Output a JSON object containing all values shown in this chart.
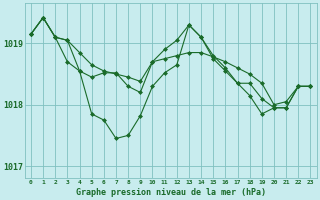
{
  "xlabel": "Graphe pression niveau de la mer (hPa)",
  "background_color": "#c8ecee",
  "plot_bg_color": "#c8ecee",
  "grid_color": "#80c0c0",
  "line_color": "#1a6b2a",
  "tick_label_color": "#1a6b2a",
  "xlabel_color": "#1a6b2a",
  "x_ticks": [
    0,
    1,
    2,
    3,
    4,
    5,
    6,
    7,
    8,
    9,
    10,
    11,
    12,
    13,
    14,
    15,
    16,
    17,
    18,
    19,
    20,
    21,
    22,
    23
  ],
  "ylim": [
    1016.8,
    1019.65
  ],
  "yticks": [
    1017,
    1018,
    1019
  ],
  "series": [
    [
      1019.15,
      1019.42,
      1019.1,
      1019.05,
      1018.85,
      1018.65,
      1018.55,
      1018.5,
      1018.45,
      1018.38,
      1018.7,
      1018.75,
      1018.8,
      1018.85,
      1018.85,
      1018.78,
      1018.7,
      1018.6,
      1018.5,
      1018.35,
      1018.0,
      1018.05,
      1018.3,
      1018.3
    ],
    [
      1019.15,
      1019.42,
      1019.1,
      1018.7,
      1018.55,
      1018.45,
      1018.52,
      1018.52,
      1018.3,
      1018.2,
      1018.7,
      1018.9,
      1019.05,
      1019.3,
      1019.1,
      1018.8,
      1018.6,
      1018.35,
      1018.35,
      1018.1,
      1017.95,
      1017.95,
      1018.3,
      1018.3
    ],
    [
      1019.15,
      1019.42,
      1019.1,
      1019.05,
      1018.55,
      1017.85,
      1017.75,
      1017.45,
      1017.5,
      1017.82,
      1018.3,
      1018.52,
      1018.65,
      1019.3,
      1019.1,
      1018.75,
      1018.55,
      1018.35,
      1018.15,
      1017.85,
      1017.95,
      1017.95,
      1018.3,
      1018.3
    ]
  ]
}
